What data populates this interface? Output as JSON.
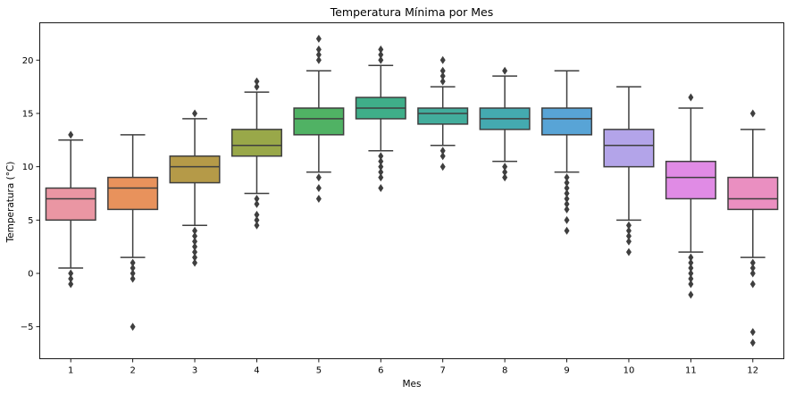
{
  "chart_data": {
    "type": "box",
    "title": "Temperatura Mínima por Mes",
    "xlabel": "Mes",
    "ylabel": "Temperatura (°C)",
    "ylim": [
      -8,
      23.5
    ],
    "yticks": [
      -5,
      0,
      5,
      10,
      15,
      20
    ],
    "grid": false,
    "categories": [
      "1",
      "2",
      "3",
      "4",
      "5",
      "6",
      "7",
      "8",
      "9",
      "10",
      "11",
      "12"
    ],
    "series": [
      {
        "category": "1",
        "color": "#ea96a3",
        "min": 0.5,
        "q1": 5.0,
        "median": 7.0,
        "q3": 8.0,
        "max": 12.5,
        "outliers": [
          13.0,
          0.0,
          -0.5,
          -1.0
        ]
      },
      {
        "category": "2",
        "color": "#e8925c",
        "min": 1.5,
        "q1": 6.0,
        "median": 8.0,
        "q3": 9.0,
        "max": 13.0,
        "outliers": [
          1.0,
          0.5,
          0.0,
          -0.5,
          -5.0
        ]
      },
      {
        "category": "3",
        "color": "#b59a48",
        "min": 4.5,
        "q1": 8.5,
        "median": 10.0,
        "q3": 11.0,
        "max": 14.5,
        "outliers": [
          15.0,
          4.0,
          3.5,
          3.0,
          2.5,
          2.0,
          1.5,
          1.0
        ]
      },
      {
        "category": "4",
        "color": "#99a849",
        "min": 7.5,
        "q1": 11.0,
        "median": 12.0,
        "q3": 13.5,
        "max": 17.0,
        "outliers": [
          18.0,
          17.5,
          7.0,
          6.5,
          5.5,
          5.0,
          4.5
        ]
      },
      {
        "category": "5",
        "color": "#50b264",
        "min": 9.5,
        "q1": 13.0,
        "median": 14.5,
        "q3": 15.5,
        "max": 19.0,
        "outliers": [
          22.0,
          21.0,
          20.5,
          20.0,
          9.0,
          8.0,
          7.0
        ]
      },
      {
        "category": "6",
        "color": "#3fae89",
        "min": 11.5,
        "q1": 14.5,
        "median": 15.5,
        "q3": 16.5,
        "max": 19.5,
        "outliers": [
          21.0,
          20.5,
          20.0,
          11.0,
          10.5,
          10.0,
          9.5,
          9.0,
          8.0
        ]
      },
      {
        "category": "7",
        "color": "#42ad9c",
        "min": 12.0,
        "q1": 14.0,
        "median": 15.0,
        "q3": 15.5,
        "max": 17.5,
        "outliers": [
          20.0,
          19.0,
          18.5,
          18.0,
          11.5,
          11.0,
          10.0
        ]
      },
      {
        "category": "8",
        "color": "#44aab0",
        "min": 10.5,
        "q1": 13.5,
        "median": 14.5,
        "q3": 15.5,
        "max": 18.5,
        "outliers": [
          19.0,
          10.0,
          9.5,
          9.0
        ]
      },
      {
        "category": "9",
        "color": "#58a4d6",
        "min": 9.5,
        "q1": 13.0,
        "median": 14.5,
        "q3": 15.5,
        "max": 19.0,
        "outliers": [
          9.0,
          8.5,
          8.0,
          7.5,
          7.0,
          6.5,
          6.0,
          5.0,
          4.0
        ]
      },
      {
        "category": "10",
        "color": "#b3a4e9",
        "min": 5.0,
        "q1": 10.0,
        "median": 12.0,
        "q3": 13.5,
        "max": 17.5,
        "outliers": [
          4.5,
          4.0,
          3.5,
          3.0,
          2.0
        ]
      },
      {
        "category": "11",
        "color": "#e08be5",
        "min": 2.0,
        "q1": 7.0,
        "median": 9.0,
        "q3": 10.5,
        "max": 15.5,
        "outliers": [
          16.5,
          1.5,
          1.0,
          0.5,
          0.0,
          -0.5,
          -1.0,
          -2.0
        ]
      },
      {
        "category": "12",
        "color": "#ea8fc1",
        "min": 1.5,
        "q1": 6.0,
        "median": 7.0,
        "q3": 9.0,
        "max": 13.5,
        "outliers": [
          15.0,
          1.0,
          0.5,
          0.0,
          -1.0,
          -5.5,
          -6.5
        ]
      }
    ]
  }
}
